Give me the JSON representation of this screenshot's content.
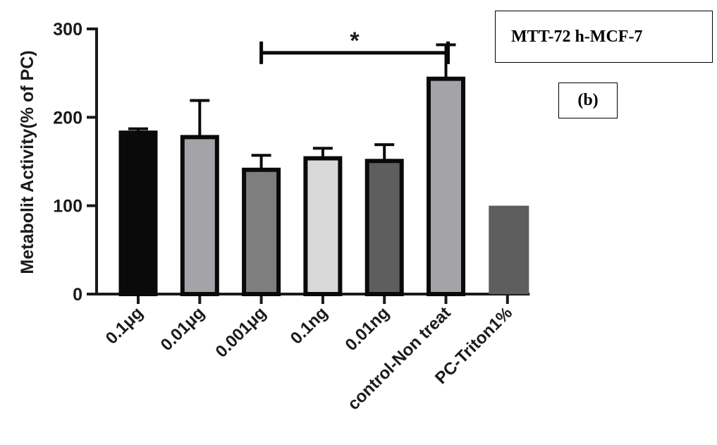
{
  "chart_data": {
    "type": "bar",
    "title": "MTT-72 h-MCF-7",
    "panel_label": "(b)",
    "ylabel": "Metabolit Activity(% of PC)",
    "xlabel": "",
    "ylim": [
      0,
      300
    ],
    "yticks": [
      0,
      100,
      200,
      300
    ],
    "grid": false,
    "legend": "none",
    "categories": [
      "0.1μg",
      "0.01μg",
      "0.001μg",
      "0.1ng",
      "0.01ng",
      "control-Non treat",
      "PC-Triton1%"
    ],
    "values": [
      185,
      180,
      143,
      156,
      153,
      246,
      100
    ],
    "errors": [
      2,
      39,
      14,
      9,
      16,
      36,
      0
    ],
    "colors": [
      "#0a0a0a",
      "#a3a3a8",
      "#7e7e7e",
      "#d8d8d8",
      "#5e5e5e",
      "#a3a3a8",
      "#5e5e5e"
    ],
    "outlined": [
      true,
      true,
      true,
      true,
      true,
      true,
      false
    ],
    "significance": {
      "from_category": "0.001μg",
      "to_category": "control-Non treat",
      "y": 273,
      "label": "*"
    }
  }
}
